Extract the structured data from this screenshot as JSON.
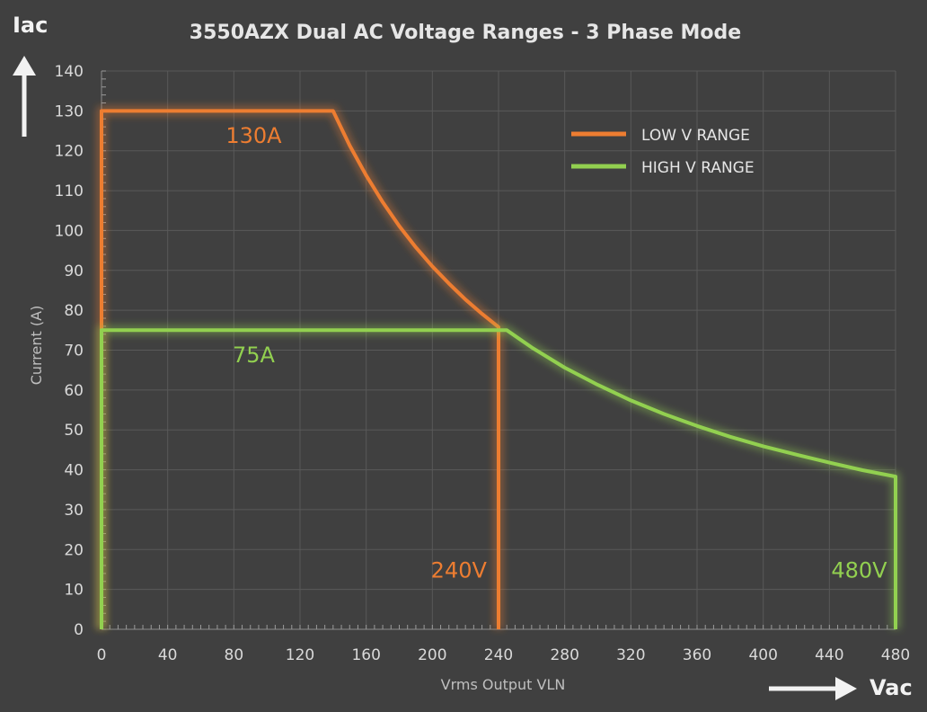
{
  "chart_data": {
    "type": "line",
    "title": "3550AZX Dual  AC Voltage Ranges - 3 Phase Mode",
    "xlabel": "Vrms Output VLN",
    "ylabel": "Current (A)",
    "x_corner_label": "Vac",
    "y_corner_label": "Iac",
    "xlim": [
      0,
      480
    ],
    "ylim": [
      0,
      140
    ],
    "x_ticks": [
      0,
      40,
      80,
      120,
      160,
      200,
      240,
      280,
      320,
      360,
      400,
      440,
      480
    ],
    "y_ticks": [
      0,
      10,
      20,
      30,
      40,
      50,
      60,
      70,
      80,
      90,
      100,
      110,
      120,
      130,
      140
    ],
    "grid": true,
    "legend_position": "top-right",
    "series": [
      {
        "name": "LOW V RANGE",
        "color": "#ED7D31",
        "points": [
          [
            0,
            0
          ],
          [
            0,
            130
          ],
          [
            140,
            130
          ],
          [
            150,
            121.3
          ],
          [
            160,
            113.8
          ],
          [
            170,
            107.1
          ],
          [
            180,
            101.1
          ],
          [
            190,
            95.8
          ],
          [
            200,
            91
          ],
          [
            210,
            86.7
          ],
          [
            220,
            82.7
          ],
          [
            230,
            79.1
          ],
          [
            240,
            75.8
          ],
          [
            240,
            0
          ]
        ]
      },
      {
        "name": "HIGH V RANGE",
        "color": "#92D050",
        "points": [
          [
            0,
            0
          ],
          [
            0,
            75
          ],
          [
            245,
            75
          ],
          [
            260,
            70.7
          ],
          [
            280,
            65.6
          ],
          [
            300,
            61.3
          ],
          [
            320,
            57.4
          ],
          [
            340,
            54
          ],
          [
            360,
            51
          ],
          [
            380,
            48.3
          ],
          [
            400,
            45.9
          ],
          [
            420,
            43.8
          ],
          [
            440,
            41.8
          ],
          [
            460,
            39.9
          ],
          [
            480,
            38.3
          ],
          [
            480,
            0
          ]
        ]
      }
    ],
    "annotations": [
      {
        "text": "130A",
        "x": 92,
        "y": 122,
        "color": "#ED7D31"
      },
      {
        "text": "75A",
        "x": 92,
        "y": 67,
        "color": "#92D050"
      },
      {
        "text": "240V",
        "x": 216,
        "y": 13,
        "color": "#ED7D31"
      },
      {
        "text": "480V",
        "x": 458,
        "y": 13,
        "color": "#92D050"
      }
    ]
  }
}
